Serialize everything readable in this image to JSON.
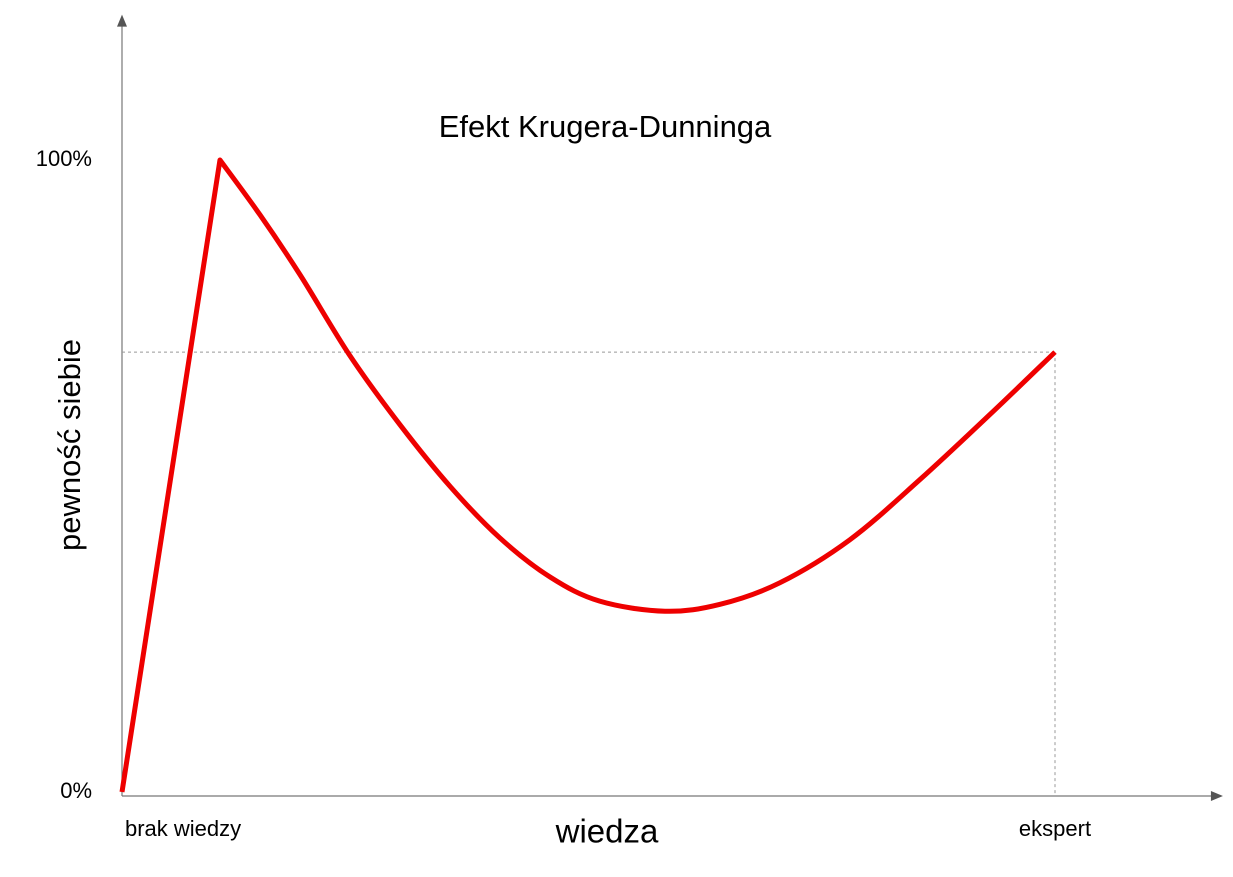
{
  "chart_data": {
    "type": "line",
    "title": "Efekt Krugera-Dunninga",
    "x_label": "wiedza",
    "y_label": "pewność siebie",
    "xlim": [
      0,
      118
    ],
    "ylim": [
      0,
      123
    ],
    "xticks": [
      {
        "value": 0,
        "label": "brak wiedzy"
      },
      {
        "value": 100,
        "label": "ekspert"
      }
    ],
    "yticks": [
      {
        "value": 0,
        "label": "0%"
      },
      {
        "value": 100,
        "label": "100%"
      }
    ],
    "series": [
      {
        "color": "#ee0000",
        "x": [
          0,
          10.5,
          14.8,
          19.1,
          24.4,
          29.8,
          35.2,
          40.5,
          45.9,
          51.2,
          58.2,
          64.1,
          70.5,
          78.0,
          85.5,
          93.0,
          100
        ],
        "values": [
          0,
          100,
          91.3,
          81.8,
          69.1,
          58.1,
          48.3,
          40.2,
          34.0,
          30.2,
          28.6,
          29.7,
          33.1,
          39.9,
          49.4,
          59.7,
          69.6
        ]
      }
    ]
  }
}
